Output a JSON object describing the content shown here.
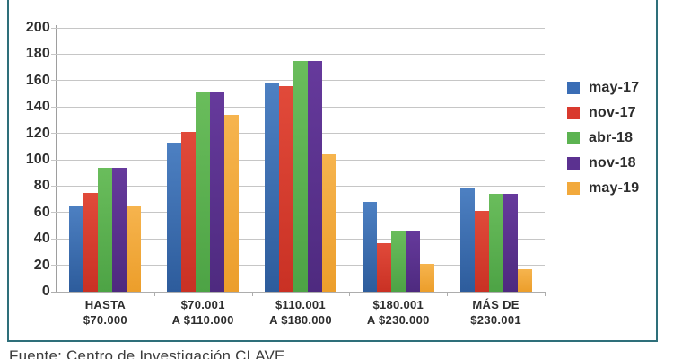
{
  "frame": {
    "border_color": "#2e6f7a"
  },
  "caption": "Fuente: Centro de Investigación CLAVE",
  "colors": {
    "grid": "#c6c6c6",
    "axis": "#9e9e9e",
    "text": "#2d2d2d"
  },
  "chart_data": {
    "type": "bar",
    "title": "",
    "xlabel": "",
    "ylabel": "",
    "ylim": [
      0,
      200
    ],
    "ytick_step": 20,
    "yticks": [
      0,
      20,
      40,
      60,
      80,
      100,
      120,
      140,
      160,
      180,
      200
    ],
    "grid": true,
    "legend_position": "right",
    "categories": [
      "HASTA\n$70.000",
      "$70.001\nA $110.000",
      "$110.001\nA $180.000",
      "$180.001\nA $230.000",
      "MÁS DE\n$230.001"
    ],
    "series": [
      {
        "name": "may-17",
        "fill": "#3a6db5",
        "fill_light": "#4d80c2",
        "fill_dark": "#2d5c9c",
        "values": [
          65,
          113,
          158,
          68,
          78
        ]
      },
      {
        "name": "nov-17",
        "fill": "#d93a2e",
        "fill_light": "#e14a3a",
        "fill_dark": "#c93124",
        "values": [
          75,
          121,
          156,
          37,
          61
        ]
      },
      {
        "name": "abr-18",
        "fill": "#5cb351",
        "fill_light": "#6abd5c",
        "fill_dark": "#4da345",
        "values": [
          94,
          152,
          175,
          46,
          74
        ]
      },
      {
        "name": "nov-18",
        "fill": "#5b3190",
        "fill_light": "#663a9c",
        "fill_dark": "#4e2a7f",
        "values": [
          94,
          152,
          175,
          46,
          74
        ]
      },
      {
        "name": "may-19",
        "fill": "#f2a93c",
        "fill_light": "#f6b44e",
        "fill_dark": "#ec9e2b",
        "values": [
          65,
          134,
          104,
          21,
          17
        ]
      }
    ]
  }
}
